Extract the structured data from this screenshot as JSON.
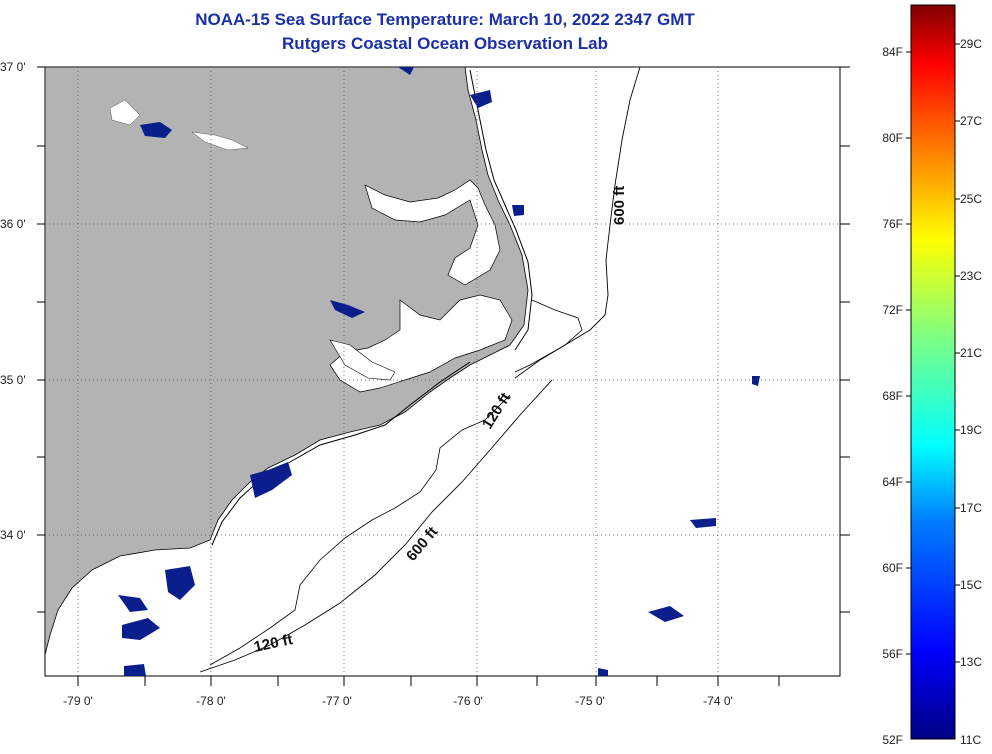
{
  "title": {
    "line1": "NOAA-15 Sea Surface Temperature:  March 10, 2022 2347 GMT",
    "line2": "Rutgers Coastal Ocean Observation Lab"
  },
  "map": {
    "lat_labels": [
      "37 0'",
      "36 0'",
      "35 0'",
      "34 0'"
    ],
    "lon_labels": [
      "-79 0'",
      "-78 0'",
      "-77 0'",
      "-76 0'",
      "-75 0'",
      "-74 0'"
    ],
    "contours": [
      {
        "label": "600 ft",
        "depth": 600
      },
      {
        "label": "120 ft",
        "depth": 120
      },
      {
        "label": "600 ft",
        "depth": 600
      },
      {
        "label": "120 ft",
        "depth": 120
      }
    ],
    "land_color": "#b3b3b3",
    "cold_color": "#0a1e8c"
  },
  "colorbar": {
    "fahrenheit": [
      "84F",
      "80F",
      "76F",
      "72F",
      "68F",
      "64F",
      "60F",
      "56F",
      "52F"
    ],
    "celsius": [
      "29C",
      "27C",
      "25C",
      "23C",
      "21C",
      "19C",
      "17C",
      "15C",
      "13C",
      "11C"
    ],
    "colors": [
      "#000083",
      "#0000ff",
      "#0080ff",
      "#00ffff",
      "#80ff80",
      "#ffff00",
      "#ff8000",
      "#ff0000",
      "#800000"
    ]
  }
}
